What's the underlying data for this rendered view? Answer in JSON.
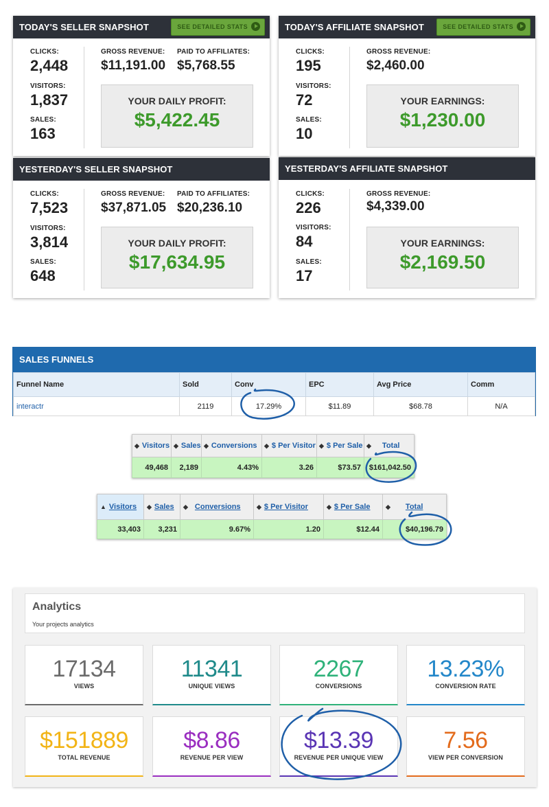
{
  "today_seller": {
    "title": "TODAY'S SELLER SNAPSHOT",
    "button": "SEE DETAILED STATS",
    "clicks_label": "CLICKS:",
    "clicks": "2,448",
    "visitors_label": "VISITORS:",
    "visitors": "1,837",
    "sales_label": "SALES:",
    "sales": "163",
    "gross_label": "GROSS REVENUE:",
    "gross": "$11,191.00",
    "paid_label": "PAID TO AFFILIATES:",
    "paid": "$5,768.55",
    "profit_label": "YOUR DAILY PROFIT:",
    "profit": "$5,422.45"
  },
  "yesterday_seller": {
    "title": "YESTERDAY'S SELLER SNAPSHOT",
    "clicks_label": "CLICKS:",
    "clicks": "7,523",
    "visitors_label": "VISITORS:",
    "visitors": "3,814",
    "sales_label": "SALES:",
    "sales": "648",
    "gross_label": "GROSS REVENUE:",
    "gross": "$37,871.05",
    "paid_label": "PAID TO AFFILIATES:",
    "paid": "$20,236.10",
    "profit_label": "YOUR DAILY PROFIT:",
    "profit": "$17,634.95"
  },
  "today_affiliate": {
    "title": "TODAY'S AFFILIATE SNAPSHOT",
    "button": "SEE DETAILED STATS",
    "clicks_label": "CLICKS:",
    "clicks": "195",
    "visitors_label": "VISITORS:",
    "visitors": "72",
    "sales_label": "SALES:",
    "sales": "10",
    "gross_label": "GROSS REVENUE:",
    "gross": "$2,460.00",
    "earnings_label": "YOUR EARNINGS:",
    "earnings": "$1,230.00"
  },
  "yesterday_affiliate": {
    "title": "YESTERDAY'S AFFILIATE SNAPSHOT",
    "clicks_label": "CLICKS:",
    "clicks": "226",
    "visitors_label": "VISITORS:",
    "visitors": "84",
    "sales_label": "SALES:",
    "sales": "17",
    "gross_label": "GROSS REVENUE:",
    "gross": "$4,339.00",
    "earnings_label": "YOUR EARNINGS:",
    "earnings": "$2,169.50"
  },
  "funnels": {
    "title": "SALES FUNNELS",
    "headers": [
      "Funnel Name",
      "Sold",
      "Conv",
      "EPC",
      "Avg Price",
      "Comm"
    ],
    "row": [
      "interactr",
      "2119",
      "17.29%",
      "$11.89",
      "$68.78",
      "N/A"
    ]
  },
  "table1": {
    "headers": [
      "Visitors",
      "Sales",
      "Conversions",
      "$ Per Visitor",
      "$ Per Sale",
      "Total"
    ],
    "row": [
      "49,468",
      "2,189",
      "4.43%",
      "3.26",
      "$73.57",
      "$161,042.50"
    ]
  },
  "table2": {
    "headers": [
      "Visitors",
      "Sales",
      "Conversions",
      "$ Per Visitor",
      "$ Per Sale",
      "Total"
    ],
    "row": [
      "33,403",
      "3,231",
      "9.67%",
      "1.20",
      "$12.44",
      "$40,196.79"
    ]
  },
  "analytics": {
    "title": "Analytics",
    "subtitle": "Your projects analytics",
    "tiles": [
      {
        "value": "17134",
        "label": "VIEWS",
        "color": "#6b6b6b"
      },
      {
        "value": "11341",
        "label": "UNIQUE VIEWS",
        "color": "#1f8a8a"
      },
      {
        "value": "2267",
        "label": "CONVERSIONS",
        "color": "#2fb27a"
      },
      {
        "value": "13.23%",
        "label": "CONVERSION RATE",
        "color": "#2387c9"
      },
      {
        "value": "$151889",
        "label": "TOTAL REVENUE",
        "color": "#f2b416"
      },
      {
        "value": "$8.86",
        "label": "REVENUE PER VIEW",
        "color": "#9a2ec0"
      },
      {
        "value": "$13.39",
        "label": "REVENUE PER UNIQUE VIEW",
        "color": "#5a35b4"
      },
      {
        "value": "7.56",
        "label": "VIEW PER CONVERSION",
        "color": "#e36b1c"
      }
    ]
  },
  "colors": {
    "annotation": "#1f5fa8",
    "profit_green": "#3d9a2b",
    "header_dark": "#2d3139",
    "funnel_blue": "#1f6aae"
  }
}
